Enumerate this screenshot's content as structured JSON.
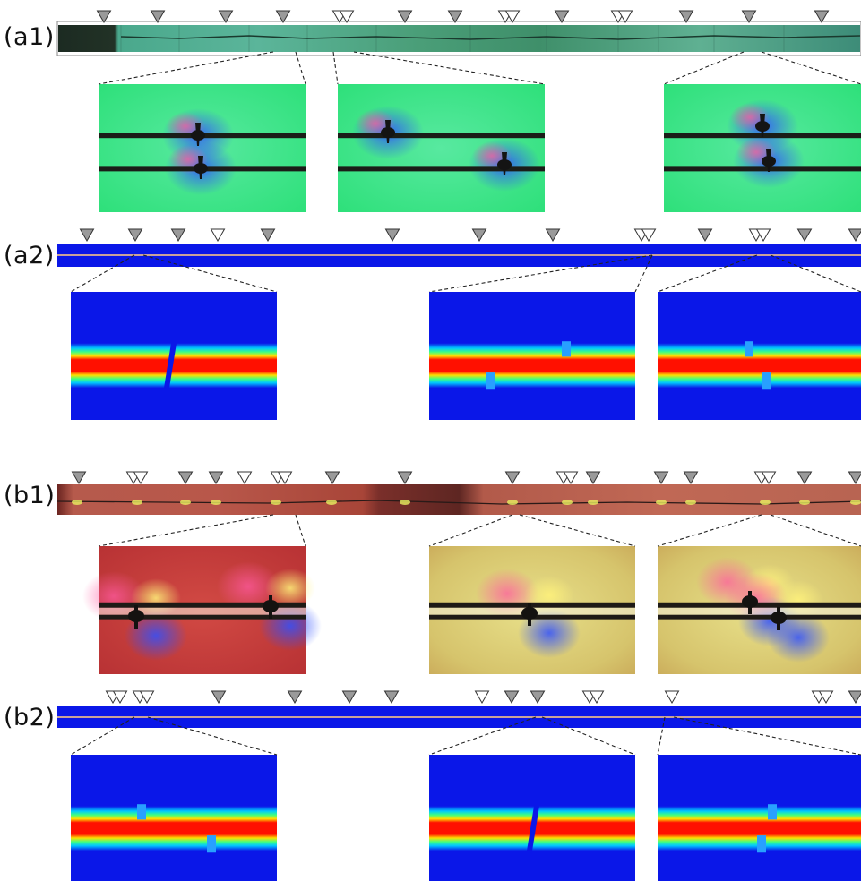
{
  "labels": {
    "a1": "(a1)",
    "a2": "(a2)",
    "b1": "(b1)",
    "b2": "(b2)"
  },
  "colors": {
    "marker_filled": "#9a9a9a",
    "marker_open": "#ffffff",
    "sim_blue": "#0a17e8",
    "sim_red": "#ff1000",
    "sim_line": "#c9a29a",
    "exp_green": "#3fe37a",
    "exp_red": "#b8403a"
  },
  "panels": {
    "a1": {
      "markers": [
        "filled",
        "filled",
        "filled",
        "filled",
        "open-pair",
        "filled",
        "filled",
        "open-pair",
        "filled",
        "open-pair",
        "filled",
        "filled",
        "filled"
      ]
    },
    "a2": {
      "markers": [
        "filled",
        "filled",
        "filled",
        "open",
        "filled",
        "filled",
        "filled",
        "filled",
        "open-pair",
        "filled",
        "open-pair",
        "filled",
        "filled"
      ]
    },
    "b1": {
      "markers": [
        "filled",
        "open-pair",
        "filled",
        "filled",
        "open",
        "open-pair",
        "filled",
        "filled",
        "filled",
        "open-pair",
        "filled",
        "filled",
        "filled",
        "open-pair",
        "filled",
        "filled"
      ]
    },
    "b2": {
      "markers": [
        "open-pair",
        "open-pair",
        "filled",
        "filled",
        "filled",
        "filled",
        "open",
        "filled",
        "filled",
        "open-pair",
        "open",
        "open-pair",
        "filled"
      ]
    }
  }
}
